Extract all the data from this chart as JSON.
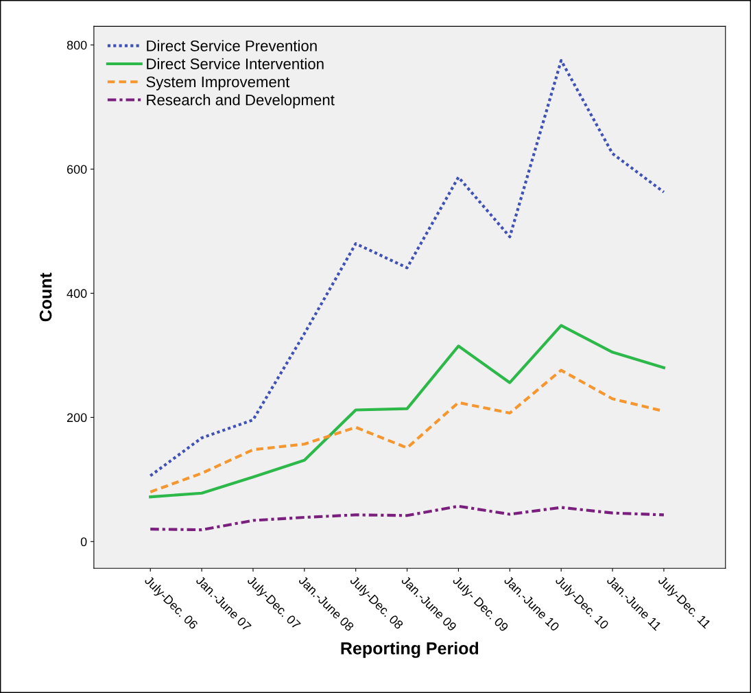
{
  "chart_data": {
    "type": "line",
    "xlabel": "Reporting Period",
    "ylabel": "Count",
    "categories": [
      "July-Dec. 06",
      "Jan.-June 07",
      "July-Dec. 07",
      "Jan.-June 08",
      "July-Dec. 08",
      "Jan.-June 09",
      "July- Dec. 09",
      "Jan.-June 10",
      "July-Dec. 10",
      "Jan.-June 11",
      "July-Dec. 11"
    ],
    "series": [
      {
        "name": "Direct Service Prevention",
        "color": "#3f51b5",
        "line_style": "dotted",
        "values": [
          106,
          167,
          196,
          335,
          480,
          441,
          587,
          491,
          775,
          625,
          563
        ]
      },
      {
        "name": "Direct Service Intervention",
        "color": "#2db84a",
        "line_style": "solid",
        "values": [
          72,
          78,
          104,
          131,
          212,
          214,
          315,
          256,
          348,
          305,
          280
        ]
      },
      {
        "name": "System Improvement",
        "color": "#f5962e",
        "line_style": "dashed",
        "values": [
          80,
          110,
          148,
          157,
          184,
          151,
          224,
          207,
          276,
          230,
          210
        ]
      },
      {
        "name": "Research and Development",
        "color": "#7b1f7f",
        "line_style": "dashdot",
        "values": [
          20,
          19,
          34,
          39,
          43,
          42,
          57,
          44,
          55,
          46,
          43
        ]
      }
    ],
    "ylim": [
      -43,
      830
    ],
    "yticks": [
      0,
      200,
      400,
      600,
      800
    ],
    "grid": false,
    "legend": "top left",
    "marker": "none"
  }
}
